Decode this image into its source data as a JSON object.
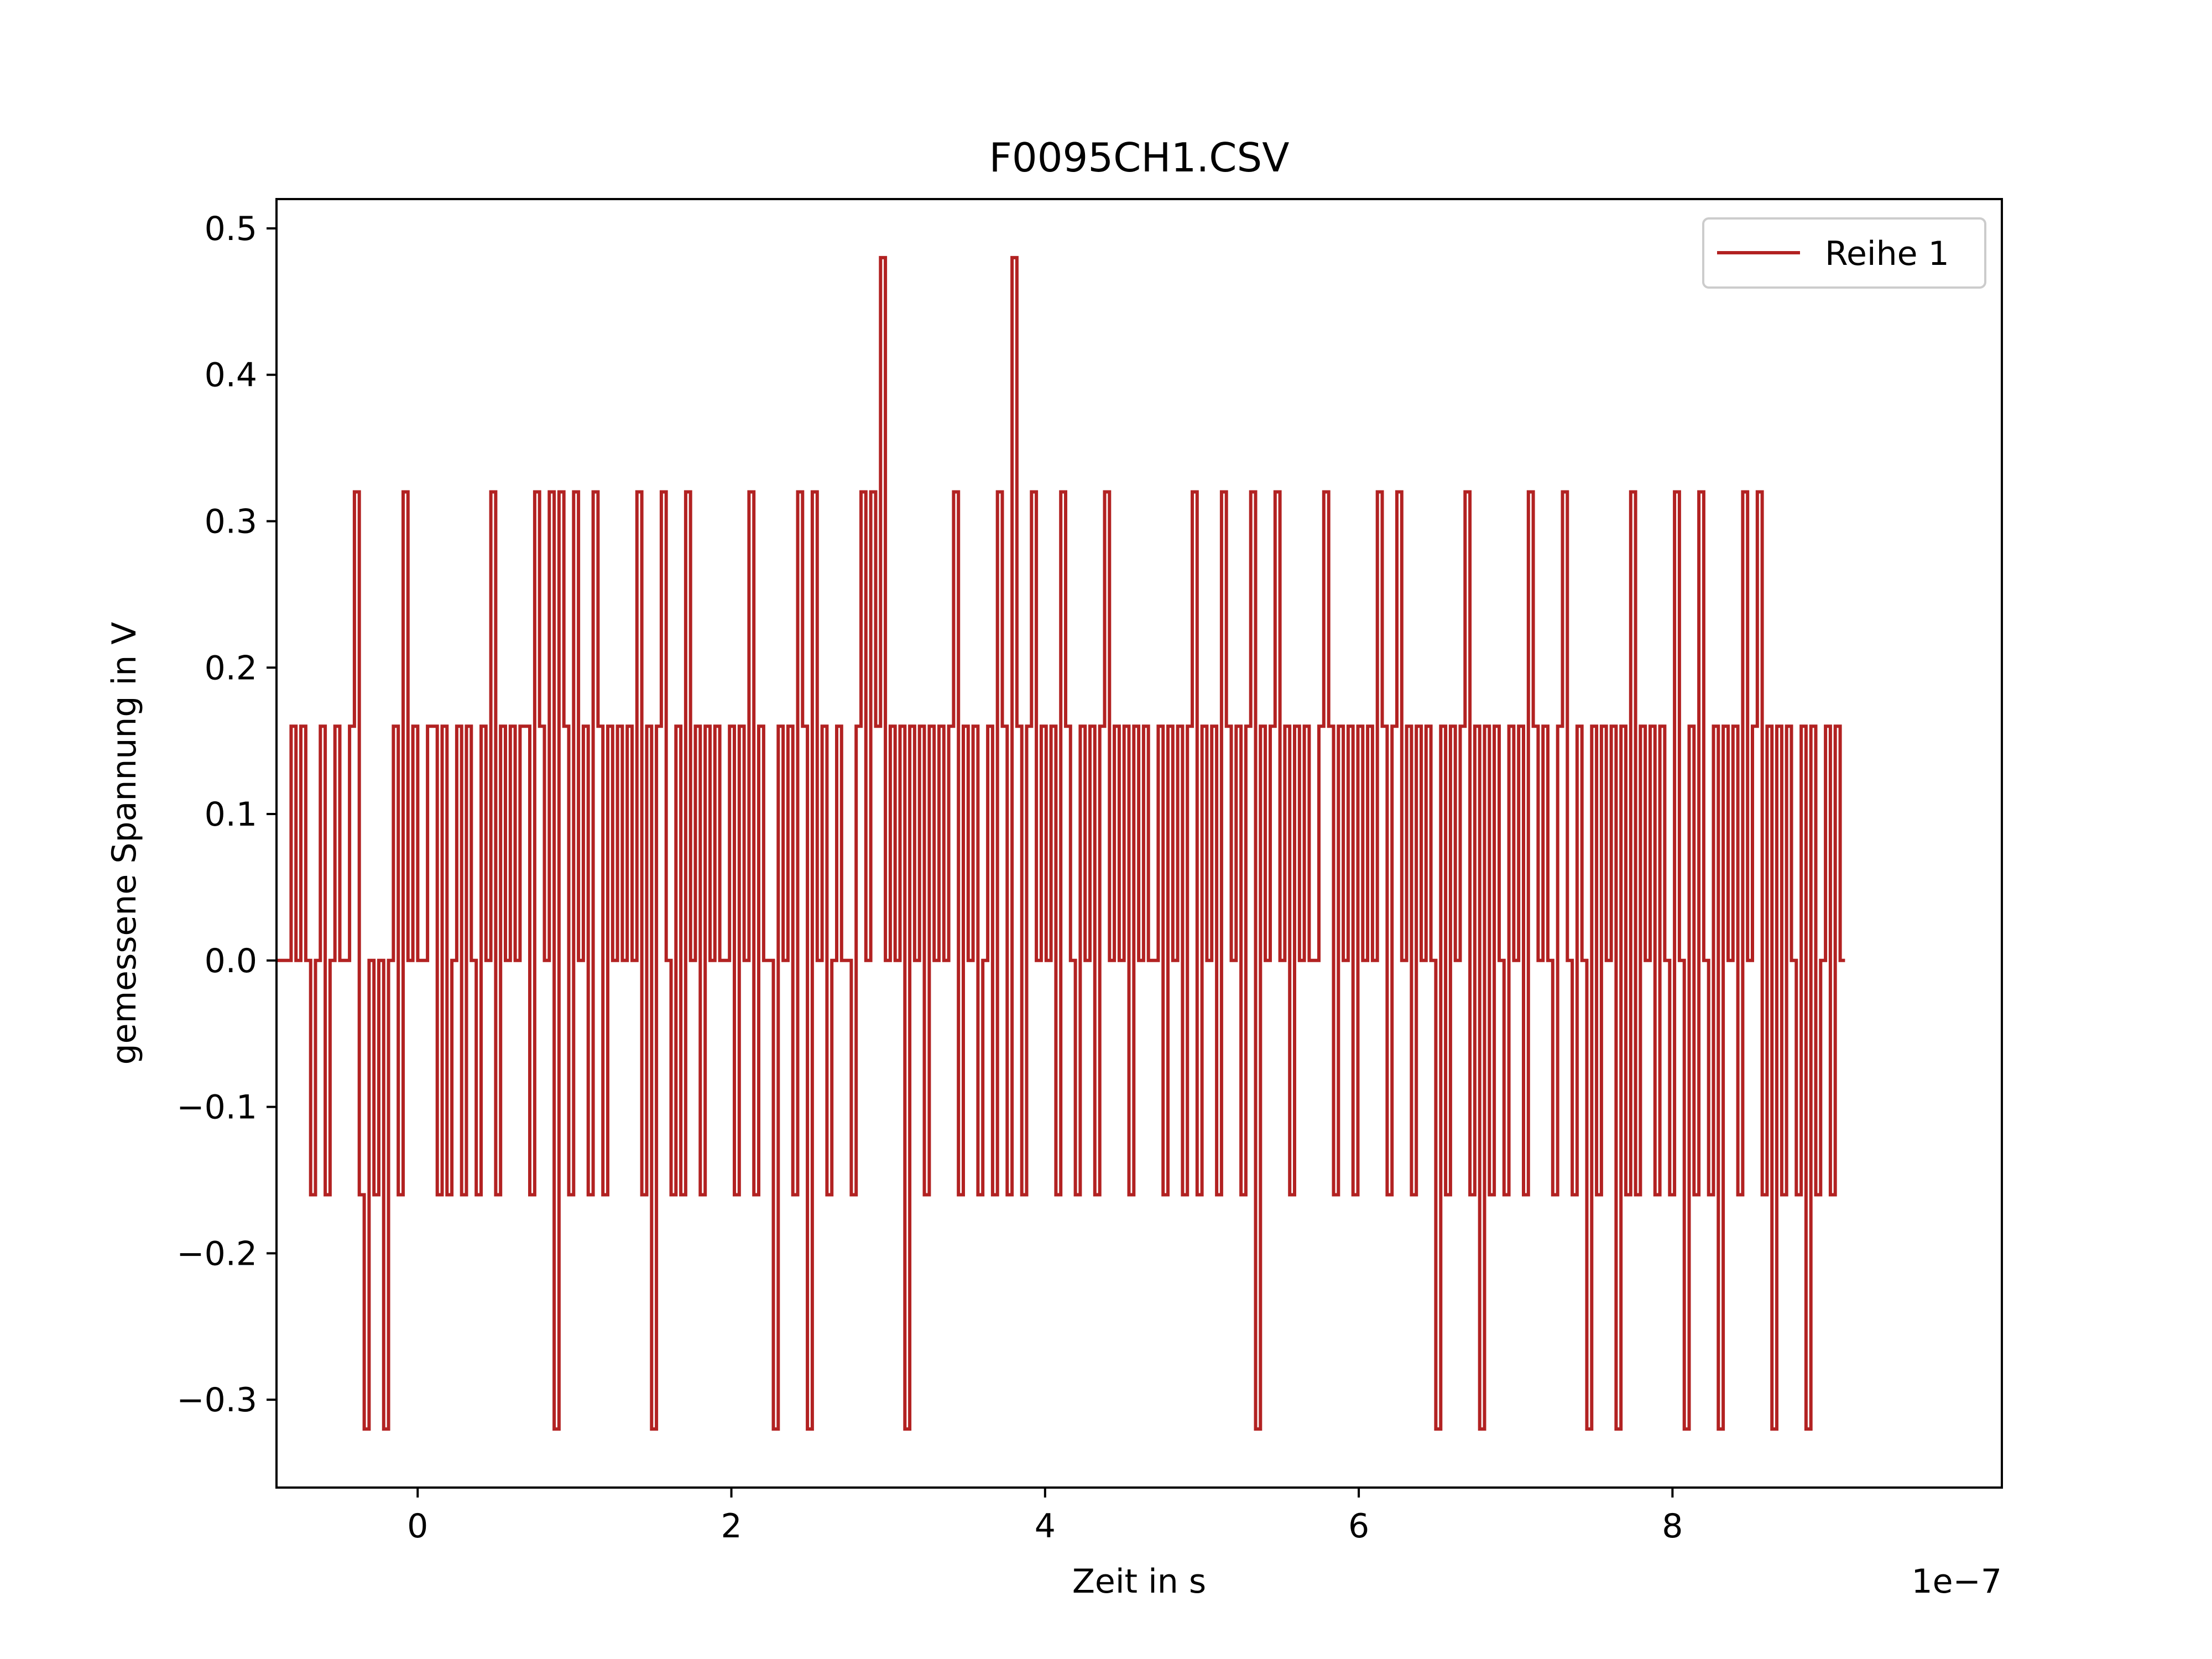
{
  "chart_data": {
    "type": "line",
    "title": "F0095CH1.CSV",
    "xlabel": "Zeit in s",
    "ylabel": "gemessene Spannung in V",
    "x_offset_label": "1e−7",
    "xlim": [
      -0.9,
      10.1
    ],
    "ylim": [
      -0.36,
      0.52
    ],
    "x_ticks": [
      0,
      2,
      4,
      6,
      8
    ],
    "x_tick_labels": [
      "0",
      "2",
      "4",
      "6",
      "8"
    ],
    "y_ticks": [
      -0.3,
      -0.2,
      -0.1,
      0.0,
      0.1,
      0.2,
      0.3,
      0.4,
      0.5
    ],
    "y_tick_labels": [
      "−0.3",
      "−0.2",
      "−0.1",
      "0.0",
      "0.1",
      "0.2",
      "0.3",
      "0.4",
      "0.5"
    ],
    "grid": false,
    "legend_position": "top-right",
    "series": [
      {
        "name": "Reihe 1",
        "color": "#b22222",
        "x_range": [
          -0.9,
          9.1
        ],
        "levels": [
          -0.32,
          -0.16,
          0,
          0.16,
          0.32,
          0.48
        ],
        "values": [
          0,
          0,
          0,
          0.16,
          0,
          0.16,
          0,
          -0.16,
          0,
          0.16,
          -0.16,
          0,
          0.16,
          0,
          0,
          0.16,
          0.32,
          -0.16,
          -0.32,
          0,
          -0.16,
          0,
          -0.32,
          0,
          0.16,
          -0.16,
          0.32,
          0,
          0.16,
          0,
          0,
          0.16,
          0.16,
          -0.16,
          0.16,
          -0.16,
          0,
          0.16,
          -0.16,
          0.16,
          0,
          -0.16,
          0.16,
          0,
          0.32,
          -0.16,
          0.16,
          0,
          0.16,
          0,
          0.16,
          0.16,
          -0.16,
          0.32,
          0.16,
          0,
          0.32,
          -0.32,
          0.32,
          0.16,
          -0.16,
          0.32,
          0,
          0.16,
          -0.16,
          0.32,
          0.16,
          -0.16,
          0.16,
          0,
          0.16,
          0,
          0.16,
          0,
          0.32,
          -0.16,
          0.16,
          -0.32,
          0.16,
          0.32,
          0,
          -0.16,
          0.16,
          -0.16,
          0.32,
          0,
          0.16,
          -0.16,
          0.16,
          0,
          0.16,
          0,
          0,
          0.16,
          -0.16,
          0.16,
          0,
          0.32,
          -0.16,
          0.16,
          0,
          0,
          -0.32,
          0.16,
          0,
          0.16,
          -0.16,
          0.32,
          0.16,
          -0.32,
          0.32,
          0,
          0.16,
          -0.16,
          0,
          0.16,
          0,
          0,
          -0.16,
          0.16,
          0.32,
          0,
          0.32,
          0.16,
          0.48,
          0,
          0.16,
          0,
          0.16,
          -0.32,
          0.16,
          0,
          0.16,
          -0.16,
          0.16,
          0,
          0.16,
          0,
          0.16,
          0.32,
          -0.16,
          0.16,
          0,
          0.16,
          -0.16,
          0,
          0.16,
          -0.16,
          0.32,
          0.16,
          -0.16,
          0.48,
          0.16,
          -0.16,
          0.16,
          0.32,
          0,
          0.16,
          0,
          0.16,
          -0.16,
          0.32,
          0.16,
          0,
          -0.16,
          0.16,
          0,
          0.16,
          -0.16,
          0.16,
          0.32,
          0,
          0.16,
          0,
          0.16,
          -0.16,
          0.16,
          0,
          0.16,
          0,
          0,
          0.16,
          -0.16,
          0.16,
          0,
          0.16,
          -0.16,
          0.16,
          0.32,
          -0.16,
          0.16,
          0,
          0.16,
          -0.16,
          0.32,
          0.16,
          0,
          0.16,
          -0.16,
          0.16,
          0.32,
          -0.32,
          0.16,
          0,
          0.16,
          0.32,
          0,
          0.16,
          -0.16,
          0.16,
          0,
          0.16,
          0,
          0,
          0.16,
          0.32,
          0.16,
          -0.16,
          0.16,
          0,
          0.16,
          -0.16,
          0.16,
          0,
          0.16,
          0,
          0.32,
          0.16,
          -0.16,
          0.16,
          0.32,
          0,
          0.16,
          -0.16,
          0.16,
          0,
          0.16,
          0,
          -0.32,
          0.16,
          -0.16,
          0.16,
          0,
          0.16,
          0.32,
          -0.16,
          0.16,
          -0.32,
          0.16,
          -0.16,
          0.16,
          0,
          -0.16,
          0.16,
          0,
          0.16,
          -0.16,
          0.32,
          0.16,
          0,
          0.16,
          0,
          -0.16,
          0.16,
          0.32,
          0,
          -0.16,
          0.16,
          0,
          -0.32,
          0.16,
          -0.16,
          0.16,
          0,
          0.16,
          -0.32,
          0.16,
          -0.16,
          0.32,
          -0.16,
          0.16,
          0,
          0.16,
          -0.16,
          0.16,
          0,
          -0.16,
          0.32,
          0,
          -0.32,
          0.16,
          -0.16,
          0.32,
          0,
          -0.16,
          0.16,
          -0.32,
          0.16,
          0,
          0.16,
          -0.16,
          0.32,
          0,
          0.16,
          0.32,
          -0.16,
          0.16,
          -0.32,
          0.16,
          -0.16,
          0.16,
          0,
          -0.16,
          0.16,
          -0.32,
          0.16,
          -0.16,
          0,
          0.16,
          -0.16,
          0.16,
          0
        ]
      }
    ]
  }
}
